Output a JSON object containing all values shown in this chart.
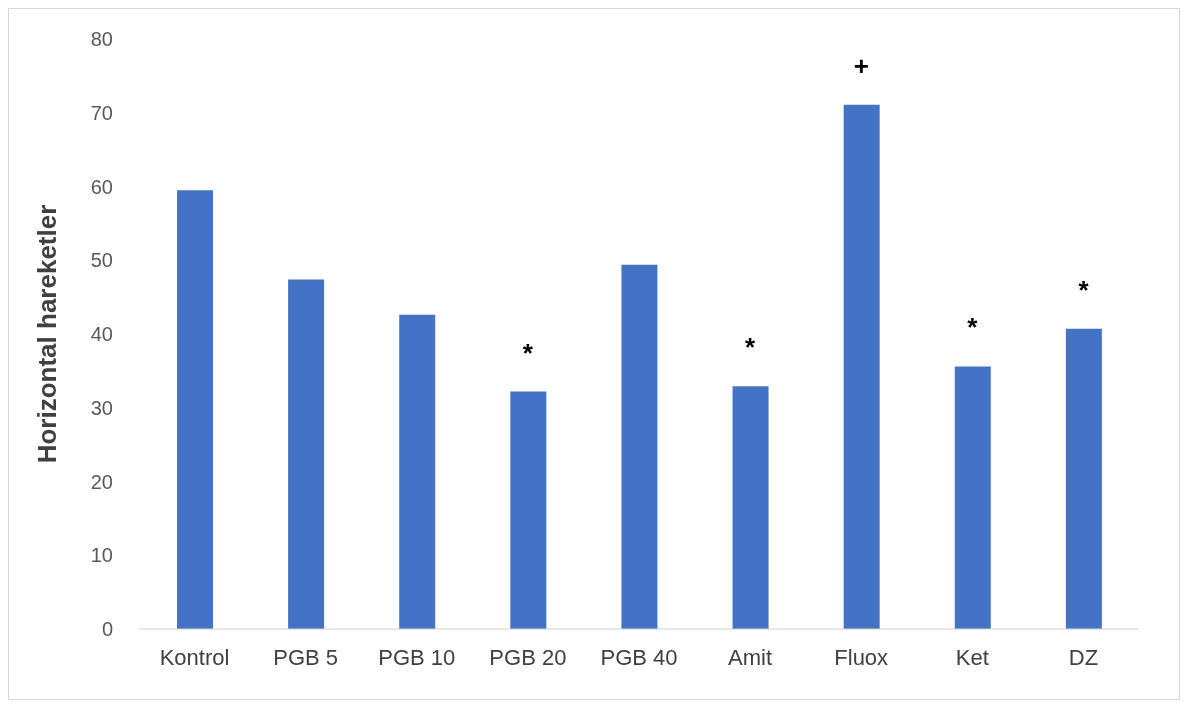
{
  "chart_data": {
    "type": "bar",
    "ylabel": "Horizontal hareketler",
    "categories": [
      "Kontrol",
      "PGB 5",
      "PGB 10",
      "PGB 20",
      "PGB 40",
      "Amit",
      "Fluox",
      "Ket",
      "DZ"
    ],
    "values": [
      59.5,
      47.4,
      42.6,
      32.2,
      49.4,
      32.9,
      71.1,
      35.6,
      40.7
    ],
    "color": "#4472c4",
    "ylim": [
      0,
      80
    ],
    "yticks": [
      0,
      10,
      20,
      30,
      40,
      50,
      60,
      70,
      80
    ],
    "grid": false,
    "annotations": [
      {
        "text": "*",
        "x": "PGB 20",
        "y": 32.2
      },
      {
        "text": "*",
        "x": "Amit",
        "y": 32.9
      },
      {
        "text": "+",
        "x": "Fluox",
        "y": 71.1
      },
      {
        "text": "*",
        "x": "Ket",
        "y": 35.6
      },
      {
        "text": "*",
        "x": "DZ",
        "y": 40.7
      }
    ]
  }
}
